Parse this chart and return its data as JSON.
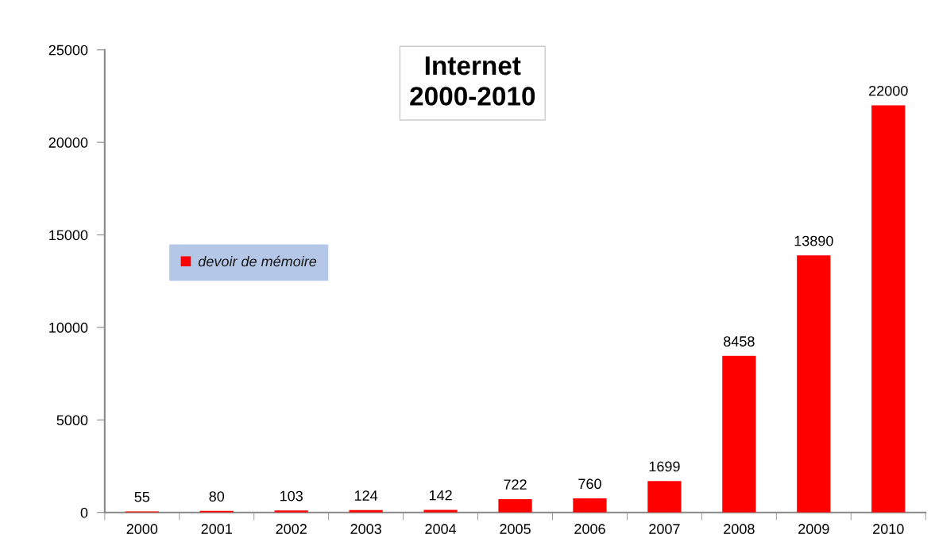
{
  "chart_data": {
    "type": "bar",
    "title": "Internet\n2000-2010",
    "categories": [
      "2000",
      "2001",
      "2002",
      "2003",
      "2004",
      "2005",
      "2006",
      "2007",
      "2008",
      "2009",
      "2010"
    ],
    "series": [
      {
        "name": "devoir de mémoire",
        "color": "#ff0000",
        "values": [
          55,
          80,
          103,
          124,
          142,
          722,
          760,
          1699,
          8458,
          13890,
          22000
        ]
      }
    ],
    "ylim": [
      0,
      25000
    ],
    "yticks": [
      0,
      5000,
      10000,
      15000,
      20000,
      25000
    ],
    "data_labels": true,
    "grid": false,
    "legend": "center left"
  }
}
